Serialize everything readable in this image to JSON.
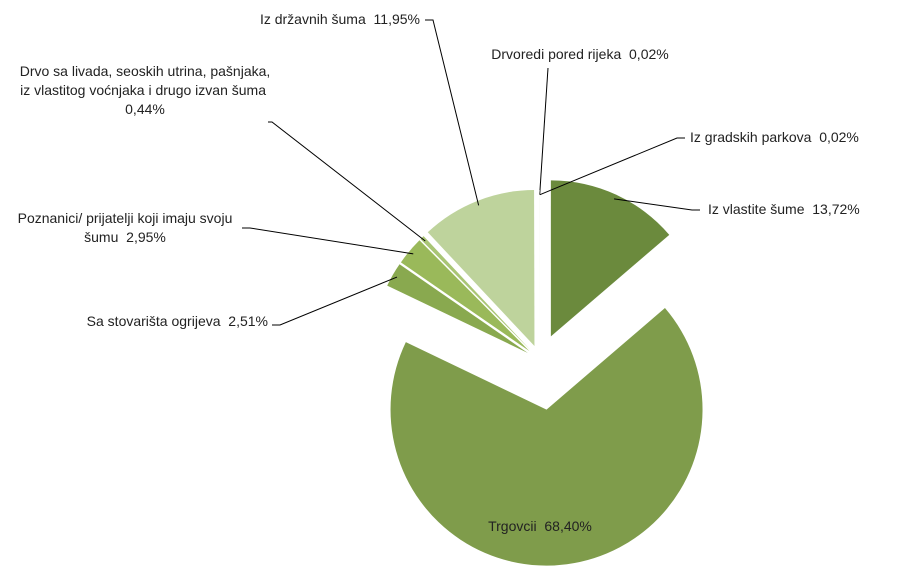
{
  "chart_data": {
    "type": "pie",
    "categories": [
      "Iz vlastite šume",
      "Trgovcii",
      "Sa stovarišta ogrijeva",
      "Poznanici/ prijatelji koji imaju svoju šumu",
      "Drvo sa livada, seoskih utrina, pašnjaka, iz vlastitog voćnjaka i drugo izvan šuma",
      "Iz državnih šuma",
      "Drvoredi pored rijeka",
      "Iz gradskih parkova"
    ],
    "values": [
      13.72,
      68.4,
      2.51,
      2.95,
      0.44,
      11.95,
      0.02,
      0.02
    ],
    "value_labels": [
      "13,72%",
      "68,40%",
      "2,51%",
      "2,95%",
      "0,44%",
      "11,95%",
      "0,02%",
      "0,02%"
    ],
    "colors": [
      "#6b8a3d",
      "#7f9c4b",
      "#89a94f",
      "#9ab95a",
      "#a9c575",
      "#bed39c",
      "#f2f6ea",
      "#f2f6ea"
    ]
  }
}
